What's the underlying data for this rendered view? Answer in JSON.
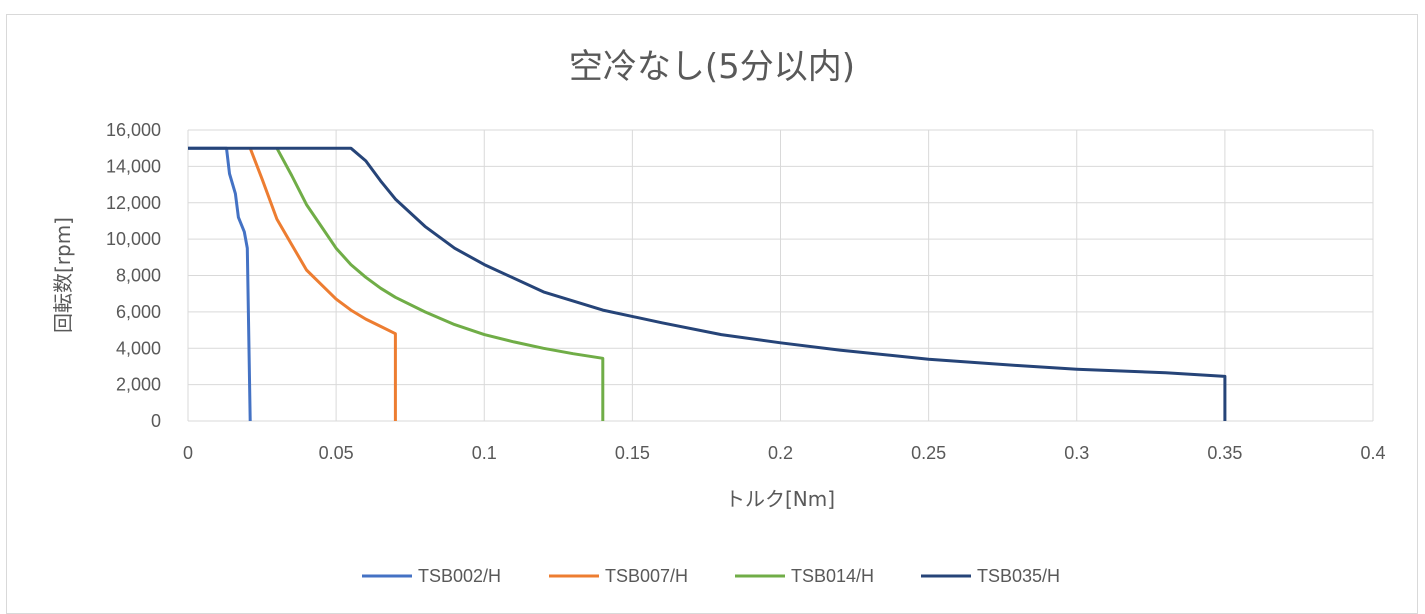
{
  "chart_data": {
    "type": "line",
    "title": "空冷なし(5分以内)",
    "xlabel": "トルク[Nm]",
    "ylabel": "回転数[rpm]",
    "xlim": [
      0,
      0.4
    ],
    "ylim": [
      0,
      16000
    ],
    "x_ticks": [
      "0",
      "0.05",
      "0.1",
      "0.15",
      "0.2",
      "0.25",
      "0.3",
      "0.35",
      "0.4"
    ],
    "y_ticks": [
      "0",
      "2,000",
      "4,000",
      "6,000",
      "8,000",
      "10,000",
      "12,000",
      "14,000",
      "16,000"
    ],
    "grid": true,
    "legend_position": "bottom",
    "series": [
      {
        "name": "TSB002/H",
        "color": "#4472C4",
        "points": [
          [
            0,
            15000
          ],
          [
            0.013,
            15000
          ],
          [
            0.014,
            13600
          ],
          [
            0.016,
            12500
          ],
          [
            0.017,
            11200
          ],
          [
            0.019,
            10400
          ],
          [
            0.02,
            9500
          ],
          [
            0.021,
            0
          ]
        ]
      },
      {
        "name": "TSB007/H",
        "color": "#ED7D31",
        "points": [
          [
            0.021,
            15000
          ],
          [
            0.025,
            13300
          ],
          [
            0.03,
            11100
          ],
          [
            0.035,
            9700
          ],
          [
            0.04,
            8300
          ],
          [
            0.045,
            7500
          ],
          [
            0.05,
            6700
          ],
          [
            0.055,
            6100
          ],
          [
            0.06,
            5600
          ],
          [
            0.065,
            5200
          ],
          [
            0.07,
            4800
          ],
          [
            0.07,
            0
          ]
        ]
      },
      {
        "name": "TSB014/H",
        "color": "#70AD47",
        "points": [
          [
            0.03,
            15000
          ],
          [
            0.035,
            13500
          ],
          [
            0.04,
            11900
          ],
          [
            0.045,
            10700
          ],
          [
            0.05,
            9500
          ],
          [
            0.055,
            8600
          ],
          [
            0.06,
            7900
          ],
          [
            0.065,
            7300
          ],
          [
            0.07,
            6800
          ],
          [
            0.08,
            6000
          ],
          [
            0.09,
            5300
          ],
          [
            0.1,
            4750
          ],
          [
            0.11,
            4350
          ],
          [
            0.12,
            4000
          ],
          [
            0.13,
            3700
          ],
          [
            0.14,
            3450
          ],
          [
            0.14,
            0
          ]
        ]
      },
      {
        "name": "TSB035/H",
        "color": "#264478",
        "points": [
          [
            0,
            15000
          ],
          [
            0.055,
            15000
          ],
          [
            0.06,
            14300
          ],
          [
            0.065,
            13200
          ],
          [
            0.07,
            12200
          ],
          [
            0.08,
            10700
          ],
          [
            0.09,
            9500
          ],
          [
            0.1,
            8600
          ],
          [
            0.12,
            7100
          ],
          [
            0.14,
            6100
          ],
          [
            0.16,
            5400
          ],
          [
            0.18,
            4750
          ],
          [
            0.2,
            4300
          ],
          [
            0.22,
            3900
          ],
          [
            0.25,
            3400
          ],
          [
            0.28,
            3050
          ],
          [
            0.3,
            2850
          ],
          [
            0.33,
            2650
          ],
          [
            0.35,
            2450
          ],
          [
            0.35,
            0
          ]
        ]
      }
    ]
  }
}
